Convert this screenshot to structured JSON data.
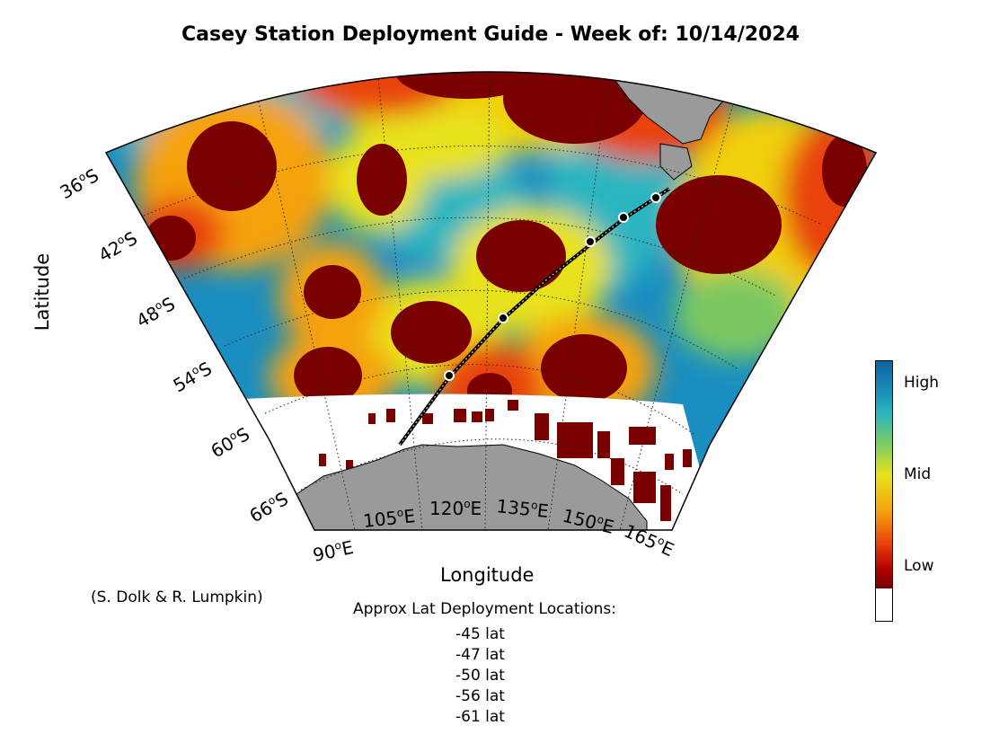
{
  "title": "Casey Station Deployment Guide - Week of: 10/14/2024",
  "axes": {
    "xlabel": "Longitude",
    "ylabel": "Latitude",
    "lat_ticks": [
      "36",
      "42",
      "48",
      "54",
      "60",
      "66"
    ],
    "lon_ticks": [
      "90",
      "105",
      "120",
      "135",
      "150",
      "165"
    ],
    "lat_suffix": "S",
    "lon_suffix": "E"
  },
  "colorbar": {
    "labels": [
      "High",
      "Mid",
      "Low"
    ],
    "colors": [
      "#0a64a4",
      "#e8e21c",
      "#7a0000"
    ]
  },
  "credit": "(S. Dolk & R. Lumpkin)",
  "deployment": {
    "heading": "Approx Lat Deployment Locations:",
    "locations": [
      "-45 lat",
      "-47 lat",
      "-50 lat",
      "-56 lat",
      "-61 lat"
    ]
  },
  "map_colors": {
    "land": "#9a9a9a",
    "high": "#0a64a4",
    "mid": "#e8e21c",
    "low": "#7a0000",
    "track": "#000000"
  }
}
